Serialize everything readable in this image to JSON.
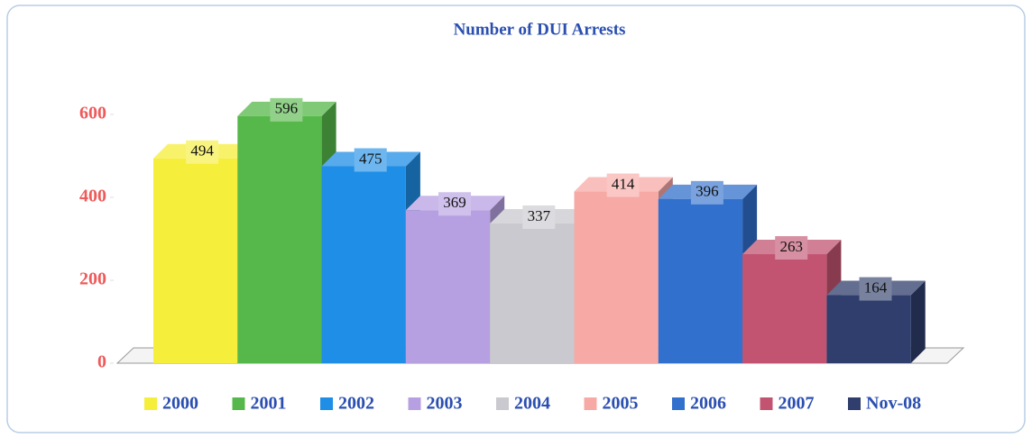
{
  "chart_data": {
    "type": "bar3d",
    "title": "Number of DUI Arrests",
    "series": [
      {
        "name": "2000",
        "color": "#f5ee3a",
        "values": [
          494
        ]
      },
      {
        "name": "2001",
        "color": "#56b84a",
        "values": [
          596
        ]
      },
      {
        "name": "2002",
        "color": "#1f8ee6",
        "values": [
          475
        ]
      },
      {
        "name": "2003",
        "color": "#b7a0e2",
        "values": [
          369
        ]
      },
      {
        "name": "2004",
        "color": "#c9c9cf",
        "values": [
          337
        ]
      },
      {
        "name": "2005",
        "color": "#f7a9a6",
        "values": [
          414
        ]
      },
      {
        "name": "2006",
        "color": "#3170cc",
        "values": [
          396
        ]
      },
      {
        "name": "2007",
        "color": "#c25471",
        "values": [
          263
        ]
      },
      {
        "name": "Nov-08",
        "color": "#2f3e6c",
        "values": [
          164
        ]
      }
    ],
    "ylim": [
      0,
      600
    ],
    "yticks": [
      0,
      200,
      400,
      600
    ],
    "grid": false,
    "legend": "bottom"
  }
}
